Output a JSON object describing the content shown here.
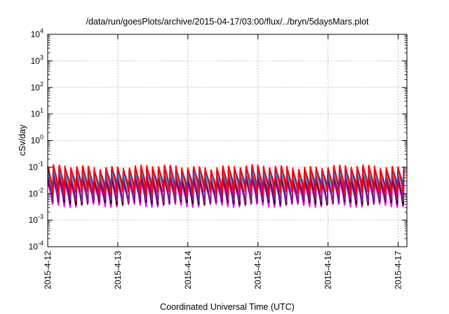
{
  "chart_data": {
    "type": "line",
    "title": "/data/run/goesPlots/archive/2015-04-17/03:00/flux/../bryn/5daysMars.plot",
    "xlabel": "Coordinated Universal Time (UTC)",
    "ylabel": "cSv/day",
    "y_scale": "log",
    "ylim": [
      0.0001,
      10000
    ],
    "y_ticks": [
      {
        "value": 0.0001,
        "base": "10",
        "exp": "-4"
      },
      {
        "value": 0.001,
        "base": "10",
        "exp": "-3"
      },
      {
        "value": 0.01,
        "base": "10",
        "exp": "-2"
      },
      {
        "value": 0.1,
        "base": "10",
        "exp": "-1"
      },
      {
        "value": 1,
        "base": "10",
        "exp": "0"
      },
      {
        "value": 10,
        "base": "10",
        "exp": "1"
      },
      {
        "value": 100,
        "base": "10",
        "exp": "2"
      },
      {
        "value": 1000,
        "base": "10",
        "exp": "3"
      },
      {
        "value": 10000,
        "base": "10",
        "exp": "4"
      }
    ],
    "xlim": [
      "2015-04-12 00:00",
      "2015-04-17 03:00"
    ],
    "x_ticks": [
      "2015-4-12",
      "2015-4-13",
      "2015-4-14",
      "2015-4-15",
      "2015-4-16",
      "2015-4-17"
    ],
    "grid": true,
    "orbit_period_hours": 2.0,
    "series": [
      {
        "color": "#ff0000",
        "peak": 0.1,
        "trough": 0.012
      },
      {
        "color": "#1f3fd6",
        "peak": 0.085,
        "trough": 0.02
      },
      {
        "color": "#00cccc",
        "peak": 0.06,
        "trough": 0.015
      },
      {
        "color": "#8a1a8a",
        "peak": 0.045,
        "trough": 0.006
      },
      {
        "color": "#111111",
        "peak": 0.035,
        "trough": 0.005
      },
      {
        "color": "#ff00ff",
        "peak": 0.025,
        "trough": 0.004
      }
    ]
  }
}
